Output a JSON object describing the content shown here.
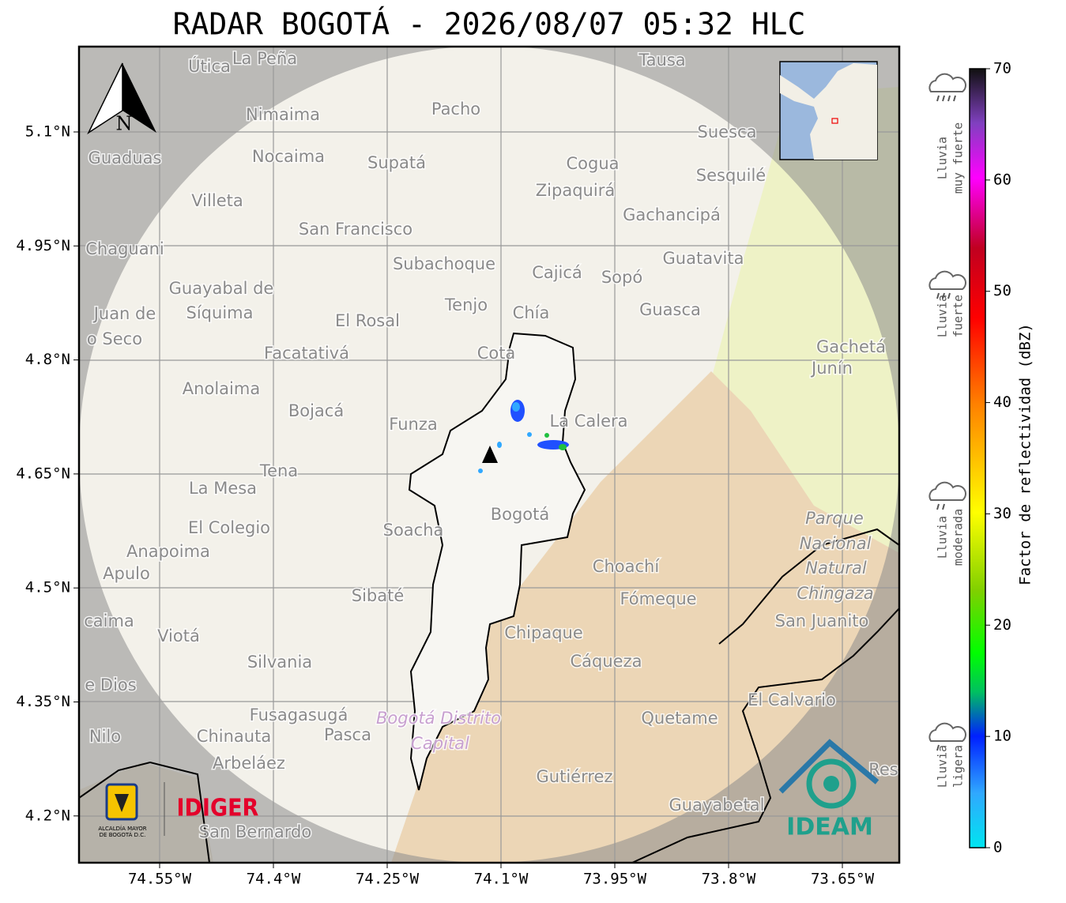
{
  "title": "RADAR BOGOTÁ - 2026/08/07 05:32 HLC",
  "lon_ticks": [
    "74.55°W",
    "74.4°W",
    "74.25°W",
    "74.1°W",
    "73.95°W",
    "73.8°W",
    "73.65°W"
  ],
  "lat_ticks": [
    "5.1°N",
    "4.95°N",
    "4.8°N",
    "4.65°N",
    "4.5°N",
    "4.35°N",
    "4.2°N"
  ],
  "north": "N",
  "colorbar": {
    "label": "Factor de reflectividad (dBZ)",
    "ticks": [
      0,
      10,
      20,
      30,
      40,
      50,
      60,
      70
    ],
    "rain_labels": [
      [
        "Lluvia",
        "muy fuerte"
      ],
      [
        "Lluvia",
        "fuerte"
      ],
      [
        "Lluvia",
        "moderada"
      ],
      [
        "Lluvia",
        "ligera"
      ]
    ]
  },
  "places": [
    "Útica",
    "La Peña",
    "Tausa",
    "Pacho",
    "Nimaima",
    "Guaduas",
    "Nocaima",
    "Supatá",
    "Cogua",
    "Suesca",
    "Zipaquirá",
    "Sesquilé",
    "Villeta",
    "Gachancipá",
    "San Francisco",
    "Chaguani",
    "Guatavita",
    "Subachoque",
    "Cajicá",
    "Sopó",
    "Guayabal de",
    "Síquima",
    "Juan de",
    "Tenjo",
    "Chía",
    "Guasca",
    "El Rosal",
    "o Seco",
    "Facatativá",
    "Cota",
    "Gachetá",
    "Junín",
    "Anolaima",
    "Bojacá",
    "Funza",
    "La Calera",
    "Tena",
    "La Mesa",
    "Bogotá",
    "Parque",
    "El Colegio",
    "Soacha",
    "Nacional",
    "Anapoima",
    "Apulo",
    "Natural",
    "Choachí",
    "Chingaza",
    "Sibaté",
    "Fómeque",
    "San Juanito",
    "caima",
    "Viotá",
    "Chipaque",
    "Silvania",
    "Cáqueza",
    "e Dios",
    "El Calvario",
    "Fusagasugá",
    "Quetame",
    "Bogotá Distrito",
    "Nilo",
    "Chinauta",
    "Pasca",
    "Capital",
    "Arbeláez",
    "Gutiérrez",
    "Res",
    "Guayabetal",
    "San Bernardo"
  ],
  "logos": {
    "idiger": "IDIGER",
    "alcaldia": [
      "ALCALDÍA MAYOR",
      "DE BOGOTÁ D.C."
    ],
    "ideam": "IDEAM"
  }
}
